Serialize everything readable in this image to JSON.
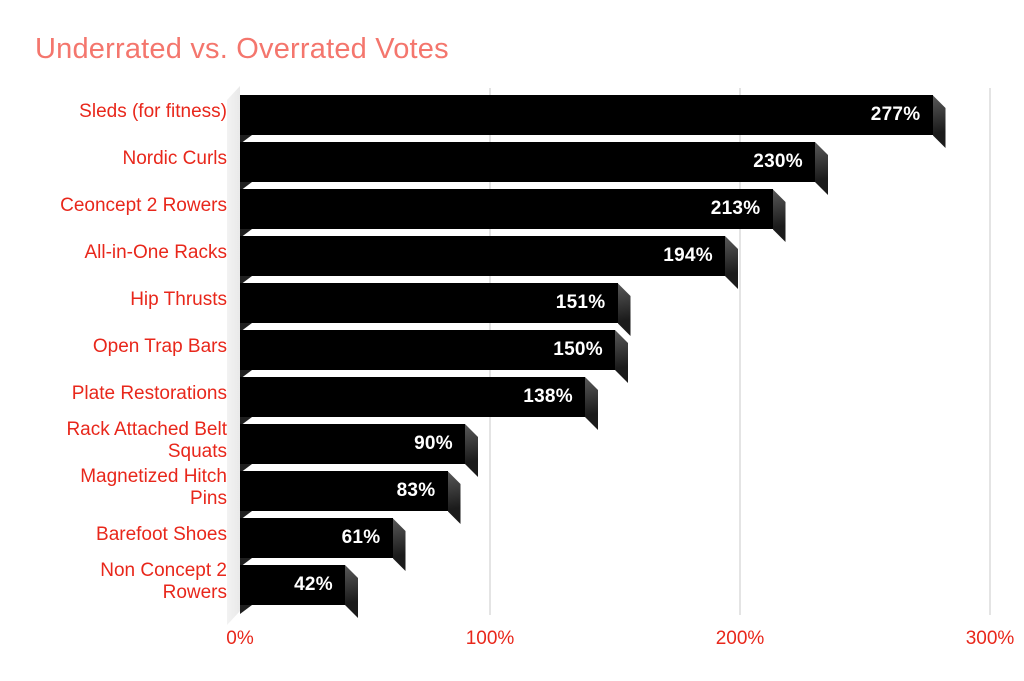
{
  "title": "Underrated vs. Overrated Votes",
  "chart_data": {
    "type": "bar",
    "orientation": "horizontal",
    "title": "Underrated vs. Overrated Votes",
    "categories": [
      "Sleds (for fitness)",
      "Nordic Curls",
      "Ceoncept 2 Rowers",
      "All-in-One Racks",
      "Hip Thrusts",
      "Open Trap Bars",
      "Plate Restorations",
      "Rack Attached Belt\nSquats",
      "Magnetized Hitch\nPins",
      "Barefoot Shoes",
      "Non Concept 2\nRowers"
    ],
    "values": [
      277,
      230,
      213,
      194,
      151,
      150,
      138,
      90,
      83,
      61,
      42
    ],
    "value_labels": [
      "277%",
      "230%",
      "213%",
      "194%",
      "151%",
      "150%",
      "138%",
      "90%",
      "83%",
      "61%",
      "42%"
    ],
    "xlim": [
      0,
      300
    ],
    "x_ticks": [
      {
        "value": 0,
        "label": "0%"
      },
      {
        "value": 100,
        "label": "100%"
      },
      {
        "value": 200,
        "label": "200%"
      },
      {
        "value": 300,
        "label": "300%"
      }
    ],
    "grid": "vertical gridlines at 100%, 200%, 300%",
    "legend": "none",
    "style": "3d-beveled-bars",
    "colors": {
      "background": "#ffffff",
      "bar": "#000000",
      "bar_side_light": "#595959",
      "bar_side_dark": "#1b1b1b",
      "value_label": "#ffffff",
      "category_label": "#e8271b",
      "tick_label": "#e8271b",
      "title": "#f4766d",
      "gridline": "#e4e4e4",
      "wall_light": "#f2f2f2",
      "wall_dark": "#e9e9e9"
    }
  }
}
